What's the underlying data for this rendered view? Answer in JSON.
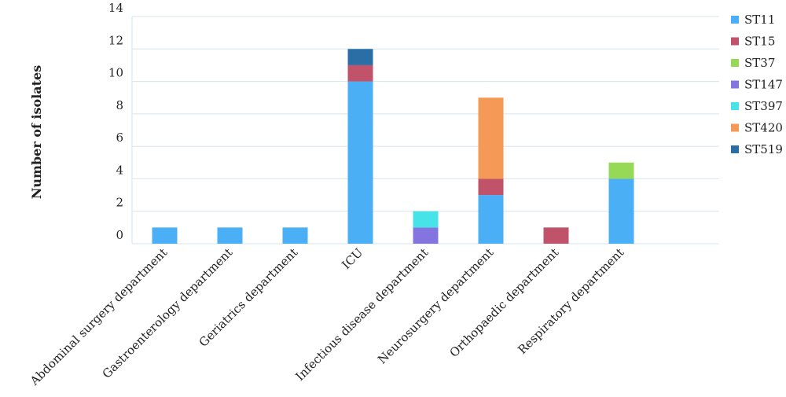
{
  "chart_data": {
    "type": "stacked_bar",
    "y_label": "Number of isolates",
    "categories": [
      "Abdominal surgery department",
      "Gastroenterology department",
      "Geriatrics department",
      "ICU",
      "Infectious disease department",
      "Neurosurgery department",
      "Orthopaedic department",
      "Respiratory department",
      null
    ],
    "series": [
      {
        "name": "ST11",
        "color": "#4aaff5",
        "values": [
          1,
          1,
          1,
          10,
          0,
          3,
          0,
          4,
          0
        ]
      },
      {
        "name": "ST15",
        "color": "#c0526a",
        "values": [
          0,
          0,
          0,
          1,
          0,
          1,
          1,
          0,
          0
        ]
      },
      {
        "name": "ST37",
        "color": "#96d957",
        "values": [
          0,
          0,
          0,
          0,
          0,
          0,
          0,
          1,
          0
        ]
      },
      {
        "name": "ST147",
        "color": "#8474e0",
        "values": [
          0,
          0,
          0,
          0,
          1,
          0,
          0,
          0,
          0
        ]
      },
      {
        "name": "ST397",
        "color": "#46e4e8",
        "values": [
          0,
          0,
          0,
          0,
          1,
          0,
          0,
          0,
          0
        ]
      },
      {
        "name": "ST420",
        "color": "#f59a56",
        "values": [
          0,
          0,
          0,
          0,
          0,
          5,
          0,
          0,
          0
        ]
      },
      {
        "name": "ST519",
        "color": "#2a6ea6",
        "values": [
          0,
          0,
          0,
          1,
          0,
          0,
          0,
          0,
          0
        ]
      }
    ],
    "ylim": [
      0,
      14
    ],
    "yticks": [
      0,
      2,
      4,
      6,
      8,
      10,
      12,
      14
    ],
    "grid": true,
    "legend": "right"
  }
}
